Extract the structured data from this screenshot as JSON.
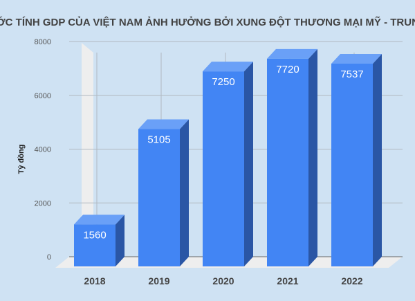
{
  "chart_data": {
    "type": "bar",
    "title": "ƯỚC TÍNH GDP CỦA VIỆT NAM ẢNH HƯỞNG BỞI XUNG ĐỘT THƯƠNG MẠI MỸ - TRUNG",
    "xlabel": "",
    "ylabel": "Tỷ đồng",
    "categories": [
      "2018",
      "2019",
      "2020",
      "2021",
      "2022"
    ],
    "values": [
      1560,
      5105,
      7250,
      7720,
      7537
    ],
    "data_labels": [
      "1560",
      "5105",
      "7250",
      "7720",
      "7537"
    ],
    "ylim": [
      0,
      8000
    ],
    "yticks": [
      "0",
      "2000",
      "4000",
      "6000",
      "8000"
    ],
    "grid": true,
    "style": "3d",
    "colors": {
      "front": "#4285f4",
      "top": "#6aa0f7",
      "side": "#2a56a5",
      "background": "#cfe2f3",
      "floor": "#eeeeee"
    }
  }
}
